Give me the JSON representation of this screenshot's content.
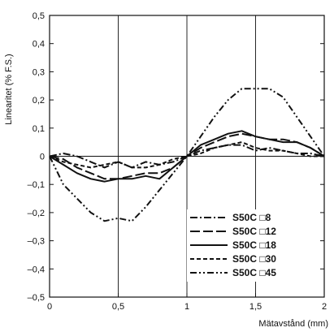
{
  "chart_data": {
    "type": "line",
    "title": "",
    "xlabel": "Mätavstånd (mm)",
    "ylabel": "Linearitet (% F.S.)",
    "xlim": [
      0,
      2
    ],
    "ylim": [
      -0.5,
      0.5
    ],
    "xticks": [
      0,
      0.5,
      1,
      1.5,
      2
    ],
    "xtick_labels": [
      "0",
      "0,5",
      "1",
      "1,5",
      "2"
    ],
    "yticks": [
      0.5,
      0.4,
      0.3,
      0.2,
      0.1,
      0,
      -0.1,
      -0.2,
      -0.3,
      -0.4,
      -0.5
    ],
    "ytick_labels": [
      "0,5",
      "0,4",
      "0,3",
      "0,2",
      "0,1",
      "0",
      "–0,1",
      "–0,2",
      "–0,3",
      "–0,4",
      "–0,5"
    ],
    "grid": "major lines at x = 0,5 / 1 / 1,5 and y = 0 only",
    "legend_position": "bottom-right",
    "series": [
      {
        "name": "S50C □8",
        "dash": "dashdot",
        "x": [
          0,
          0.1,
          0.2,
          0.3,
          0.4,
          0.5,
          0.6,
          0.7,
          0.8,
          0.9,
          1.0,
          1.1,
          1.2,
          1.3,
          1.4,
          1.5,
          1.6,
          1.7,
          1.8,
          1.9,
          2.0
        ],
        "y": [
          0,
          0.01,
          0.0,
          -0.02,
          -0.04,
          -0.02,
          -0.04,
          -0.02,
          -0.03,
          -0.02,
          0,
          0.02,
          0.03,
          0.04,
          0.04,
          0.02,
          0.03,
          0.02,
          0.01,
          0.01,
          0
        ]
      },
      {
        "name": "S50C □12",
        "dash": "longdash",
        "x": [
          0,
          0.1,
          0.2,
          0.3,
          0.4,
          0.5,
          0.6,
          0.7,
          0.8,
          0.9,
          1.0,
          1.1,
          1.2,
          1.3,
          1.4,
          1.5,
          1.6,
          1.7,
          1.8,
          1.9,
          2.0
        ],
        "y": [
          0,
          -0.01,
          -0.04,
          -0.06,
          -0.08,
          -0.08,
          -0.07,
          -0.06,
          -0.06,
          -0.04,
          0,
          0.03,
          0.05,
          0.07,
          0.08,
          0.07,
          0.06,
          0.06,
          0.05,
          0.03,
          0
        ]
      },
      {
        "name": "S50C □18",
        "dash": "solid",
        "x": [
          0,
          0.1,
          0.2,
          0.3,
          0.4,
          0.5,
          0.6,
          0.7,
          0.8,
          0.9,
          1.0,
          1.1,
          1.2,
          1.3,
          1.4,
          1.5,
          1.6,
          1.7,
          1.8,
          1.9,
          2.0
        ],
        "y": [
          0,
          -0.03,
          -0.06,
          -0.08,
          -0.09,
          -0.08,
          -0.08,
          -0.07,
          -0.08,
          -0.04,
          0,
          0.04,
          0.06,
          0.08,
          0.09,
          0.07,
          0.06,
          0.05,
          0.05,
          0.03,
          0
        ]
      },
      {
        "name": "S50C □30",
        "dash": "shortdash",
        "x": [
          0,
          0.1,
          0.2,
          0.3,
          0.4,
          0.5,
          0.6,
          0.7,
          0.8,
          0.9,
          1.0,
          1.1,
          1.2,
          1.3,
          1.4,
          1.5,
          1.6,
          1.7,
          1.8,
          1.9,
          2.0
        ],
        "y": [
          0,
          -0.02,
          -0.03,
          -0.04,
          -0.03,
          -0.02,
          -0.04,
          -0.04,
          -0.03,
          -0.01,
          0,
          0.01,
          0.03,
          0.04,
          0.05,
          0.03,
          0.02,
          0.02,
          0.01,
          0.0,
          0
        ]
      },
      {
        "name": "S50C □45",
        "dash": "dashdotdot",
        "x": [
          0,
          0.05,
          0.1,
          0.2,
          0.3,
          0.4,
          0.5,
          0.6,
          0.7,
          0.8,
          0.9,
          1.0,
          1.1,
          1.2,
          1.3,
          1.4,
          1.5,
          1.6,
          1.7,
          1.8,
          1.9,
          2.0
        ],
        "y": [
          0,
          -0.05,
          -0.1,
          -0.15,
          -0.2,
          -0.23,
          -0.22,
          -0.23,
          -0.18,
          -0.12,
          -0.06,
          0,
          0.07,
          0.14,
          0.2,
          0.24,
          0.24,
          0.24,
          0.21,
          0.14,
          0.07,
          0
        ]
      }
    ]
  }
}
